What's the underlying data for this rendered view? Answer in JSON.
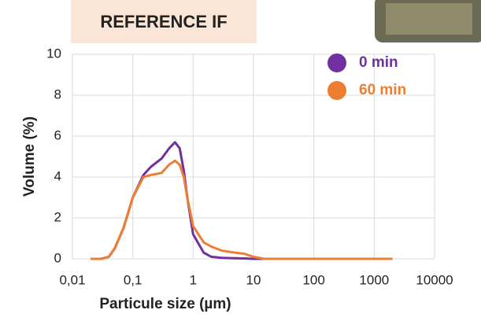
{
  "chart_data": {
    "type": "line",
    "title": "REFERENCE IF",
    "xlabel": "Particule size (µm)",
    "ylabel": "Volume (%)",
    "x": [
      0.02,
      0.03,
      0.04,
      0.05,
      0.07,
      0.1,
      0.15,
      0.2,
      0.3,
      0.4,
      0.5,
      0.6,
      0.7,
      0.8,
      1,
      1.5,
      2,
      3,
      5,
      7,
      10,
      15,
      20,
      50,
      100,
      500,
      1000,
      2000
    ],
    "series": [
      {
        "name": "0 min",
        "color": "#7030a0",
        "values": [
          0,
          0,
          0.1,
          0.5,
          1.5,
          3,
          4.1,
          4.5,
          4.9,
          5.4,
          5.7,
          5.4,
          4.3,
          3,
          1.2,
          0.3,
          0.1,
          0.05,
          0.03,
          0.02,
          0,
          0,
          0,
          0,
          0,
          0,
          0,
          0
        ]
      },
      {
        "name": "60 min",
        "color": "#ed7d31",
        "values": [
          0,
          0,
          0.1,
          0.5,
          1.5,
          3,
          4.0,
          4.1,
          4.2,
          4.6,
          4.8,
          4.6,
          4,
          3,
          1.6,
          0.8,
          0.6,
          0.4,
          0.3,
          0.25,
          0.1,
          0,
          0,
          0,
          0,
          0,
          0,
          0
        ]
      }
    ],
    "xlim": [
      0.01,
      10000
    ],
    "xlog": true,
    "xticks": [
      {
        "value": 0.01,
        "label": "0,01"
      },
      {
        "value": 0.1,
        "label": "0,1"
      },
      1,
      10,
      100,
      1000,
      10000
    ],
    "ylim": [
      0,
      10
    ],
    "yticks": [
      0,
      2,
      4,
      6,
      8,
      10
    ],
    "grid": true,
    "legend": "upper right"
  }
}
